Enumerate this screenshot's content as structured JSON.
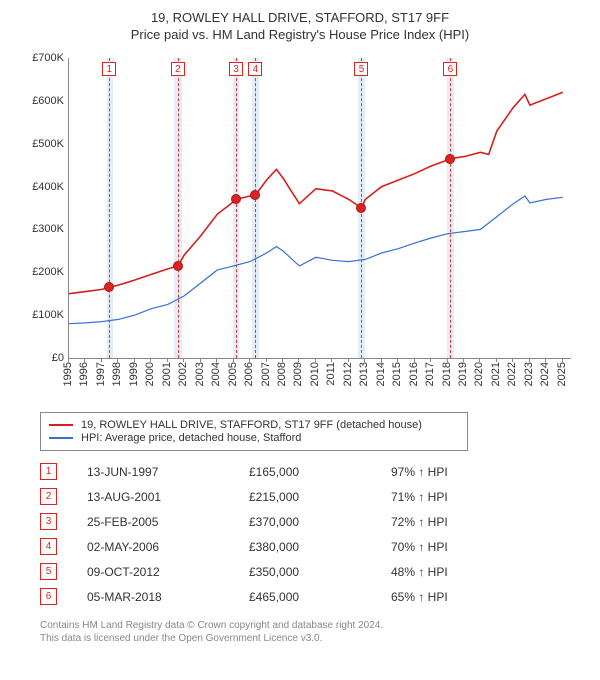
{
  "title_line1": "19, ROWLEY HALL DRIVE, STAFFORD, ST17 9FF",
  "title_line2": "Price paid vs. HM Land Registry's House Price Index (HPI)",
  "chart": {
    "type": "line",
    "xlim": [
      1995,
      2025.5
    ],
    "ylim": [
      0,
      700000
    ],
    "ytick_step": 100000,
    "ytick_labels": [
      "£0",
      "£100K",
      "£200K",
      "£300K",
      "£400K",
      "£500K",
      "£600K",
      "£700K"
    ],
    "x_years": [
      1995,
      1996,
      1997,
      1998,
      1999,
      2000,
      2001,
      2002,
      2003,
      2004,
      2005,
      2006,
      2007,
      2008,
      2009,
      2010,
      2011,
      2012,
      2013,
      2014,
      2015,
      2016,
      2017,
      2018,
      2019,
      2020,
      2021,
      2022,
      2023,
      2024,
      2025
    ],
    "background_color": "#ffffff",
    "band_color": "#dbe7f3",
    "dash_color": "#d33",
    "grid_color": "#888888",
    "bands": [
      {
        "from": 1997.3,
        "to": 1997.7
      },
      {
        "from": 2001.4,
        "to": 2001.85
      },
      {
        "from": 2004.95,
        "to": 2005.35
      },
      {
        "from": 2006.1,
        "to": 2006.55
      },
      {
        "from": 2012.55,
        "to": 2013.0
      },
      {
        "from": 2017.95,
        "to": 2018.4
      }
    ],
    "dash_x": [
      1997.45,
      2001.62,
      2005.15,
      2006.33,
      2012.77,
      2018.17
    ],
    "marker_numbers": [
      "1",
      "2",
      "3",
      "4",
      "5",
      "6"
    ],
    "series_red": {
      "label": "19, ROWLEY HALL DRIVE, STAFFORD, ST17 9FF (detached house)",
      "color": "#d81e1e",
      "width": 1.6,
      "data": [
        [
          1995,
          150000
        ],
        [
          1996,
          155000
        ],
        [
          1997,
          160000
        ],
        [
          1997.45,
          165000
        ],
        [
          1998,
          170000
        ],
        [
          1999,
          182000
        ],
        [
          2000,
          195000
        ],
        [
          2001,
          208000
        ],
        [
          2001.62,
          215000
        ],
        [
          2002,
          240000
        ],
        [
          2003,
          285000
        ],
        [
          2004,
          335000
        ],
        [
          2005,
          365000
        ],
        [
          2005.15,
          370000
        ],
        [
          2006,
          378000
        ],
        [
          2006.33,
          380000
        ],
        [
          2007,
          415000
        ],
        [
          2007.6,
          440000
        ],
        [
          2008,
          420000
        ],
        [
          2008.5,
          390000
        ],
        [
          2009,
          360000
        ],
        [
          2010,
          395000
        ],
        [
          2011,
          390000
        ],
        [
          2012,
          370000
        ],
        [
          2012.77,
          350000
        ],
        [
          2013,
          370000
        ],
        [
          2014,
          400000
        ],
        [
          2015,
          415000
        ],
        [
          2016,
          430000
        ],
        [
          2017,
          448000
        ],
        [
          2018,
          462000
        ],
        [
          2018.17,
          465000
        ],
        [
          2019,
          470000
        ],
        [
          2020,
          480000
        ],
        [
          2020.5,
          475000
        ],
        [
          2021,
          530000
        ],
        [
          2022,
          585000
        ],
        [
          2022.7,
          615000
        ],
        [
          2023,
          590000
        ],
        [
          2024,
          605000
        ],
        [
          2025,
          620000
        ]
      ]
    },
    "series_blue": {
      "label": "HPI: Average price, detached house, Stafford",
      "color": "#3a6fd8",
      "width": 1.2,
      "data": [
        [
          1995,
          80000
        ],
        [
          1996,
          82000
        ],
        [
          1997,
          85000
        ],
        [
          1998,
          90000
        ],
        [
          1999,
          100000
        ],
        [
          2000,
          115000
        ],
        [
          2001,
          125000
        ],
        [
          2002,
          145000
        ],
        [
          2003,
          175000
        ],
        [
          2004,
          205000
        ],
        [
          2005,
          215000
        ],
        [
          2006,
          225000
        ],
        [
          2007,
          245000
        ],
        [
          2007.6,
          260000
        ],
        [
          2008,
          250000
        ],
        [
          2009,
          215000
        ],
        [
          2010,
          235000
        ],
        [
          2011,
          228000
        ],
        [
          2012,
          225000
        ],
        [
          2013,
          230000
        ],
        [
          2014,
          245000
        ],
        [
          2015,
          255000
        ],
        [
          2016,
          268000
        ],
        [
          2017,
          280000
        ],
        [
          2018,
          290000
        ],
        [
          2019,
          295000
        ],
        [
          2020,
          300000
        ],
        [
          2021,
          330000
        ],
        [
          2022,
          360000
        ],
        [
          2022.7,
          378000
        ],
        [
          2023,
          362000
        ],
        [
          2024,
          370000
        ],
        [
          2025,
          375000
        ]
      ]
    },
    "sale_points": [
      {
        "x": 1997.45,
        "y": 165000
      },
      {
        "x": 2001.62,
        "y": 215000
      },
      {
        "x": 2005.15,
        "y": 370000
      },
      {
        "x": 2006.33,
        "y": 380000
      },
      {
        "x": 2012.77,
        "y": 350000
      },
      {
        "x": 2018.17,
        "y": 465000
      }
    ]
  },
  "legend": [
    {
      "color": "#d81e1e",
      "text": "19, ROWLEY HALL DRIVE, STAFFORD, ST17 9FF (detached house)"
    },
    {
      "color": "#3a6fd8",
      "text": "HPI: Average price, detached house, Stafford"
    }
  ],
  "sales": [
    {
      "n": "1",
      "date": "13-JUN-1997",
      "price": "£165,000",
      "pct": "97% ↑ HPI"
    },
    {
      "n": "2",
      "date": "13-AUG-2001",
      "price": "£215,000",
      "pct": "71% ↑ HPI"
    },
    {
      "n": "3",
      "date": "25-FEB-2005",
      "price": "£370,000",
      "pct": "72% ↑ HPI"
    },
    {
      "n": "4",
      "date": "02-MAY-2006",
      "price": "£380,000",
      "pct": "70% ↑ HPI"
    },
    {
      "n": "5",
      "date": "09-OCT-2012",
      "price": "£350,000",
      "pct": "48% ↑ HPI"
    },
    {
      "n": "6",
      "date": "05-MAR-2018",
      "price": "£465,000",
      "pct": "65% ↑ HPI"
    }
  ],
  "footer_line1": "Contains HM Land Registry data © Crown copyright and database right 2024.",
  "footer_line2": "This data is licensed under the Open Government Licence v3.0."
}
